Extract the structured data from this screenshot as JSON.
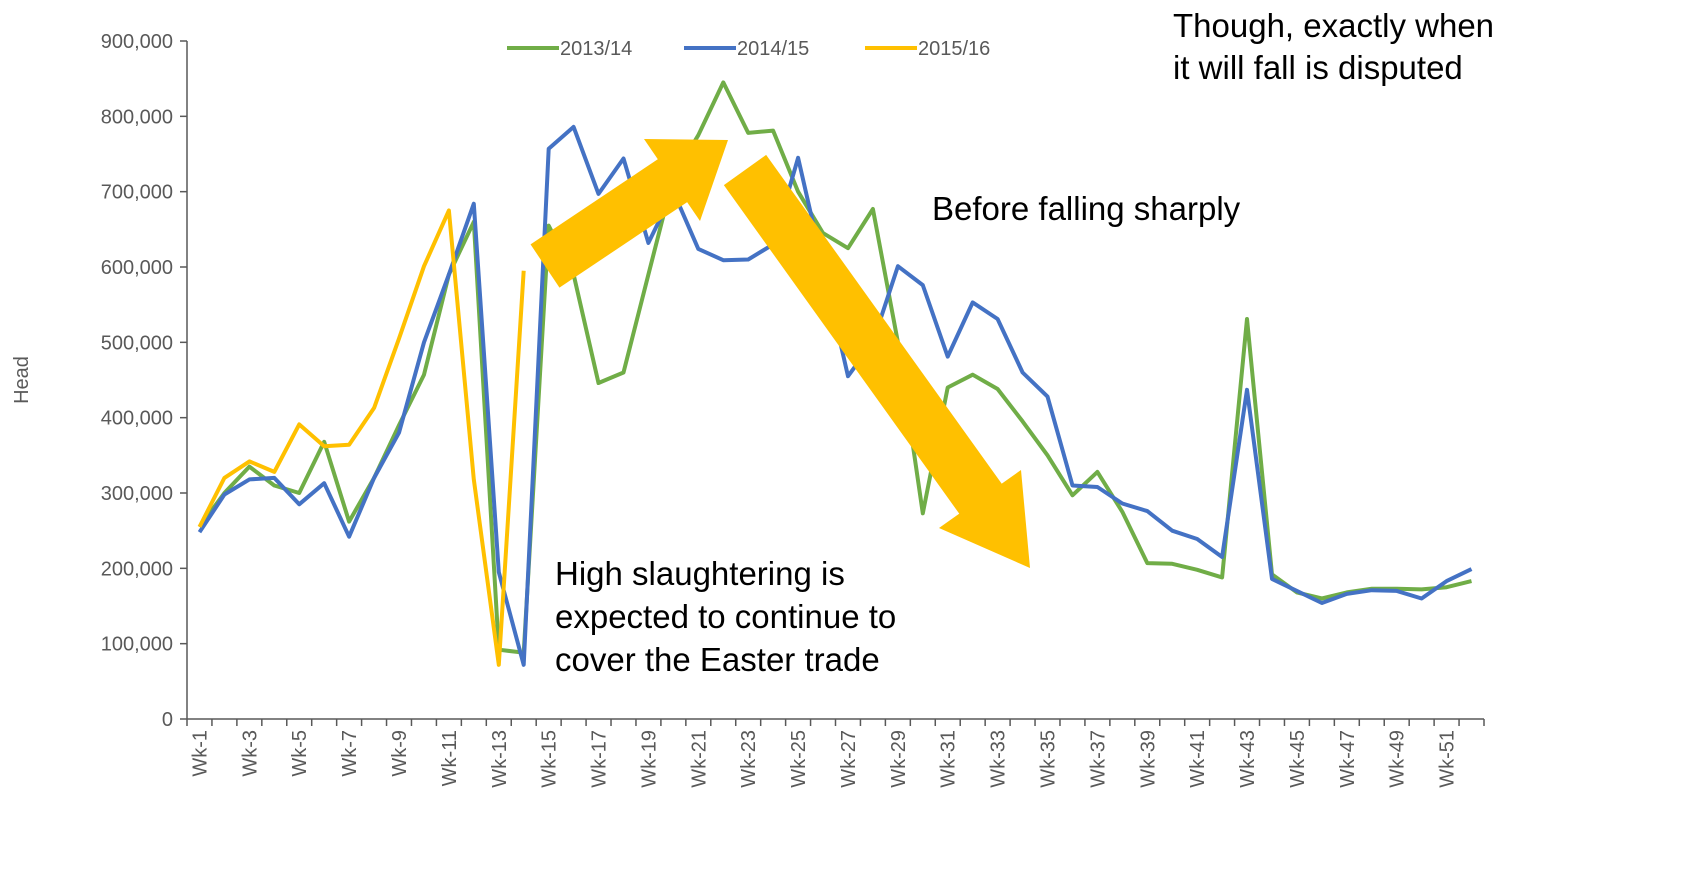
{
  "chart_data": {
    "type": "line",
    "y_label": "Head",
    "categories": [
      "Wk-1",
      null,
      "Wk-3",
      null,
      "Wk-5",
      null,
      "Wk-7",
      null,
      "Wk-9",
      null,
      "Wk-11",
      null,
      "Wk-13",
      null,
      "Wk-15",
      null,
      "Wk-17",
      null,
      "Wk-19",
      null,
      "Wk-21",
      null,
      "Wk-23",
      null,
      "Wk-25",
      null,
      "Wk-27",
      null,
      "Wk-29",
      null,
      "Wk-31",
      null,
      "Wk-33",
      null,
      "Wk-35",
      null,
      "Wk-37",
      null,
      "Wk-39",
      null,
      "Wk-41",
      null,
      "Wk-43",
      null,
      "Wk-45",
      null,
      "Wk-47",
      null,
      "Wk-49",
      null,
      "Wk-51",
      null
    ],
    "series": [
      {
        "name": "2013/14",
        "color": "#70ad47",
        "values": [
          255000,
          300000,
          335000,
          310000,
          300000,
          368000,
          262000,
          320000,
          390000,
          457000,
          590000,
          660000,
          92000,
          88000,
          655000,
          590000,
          446000,
          460000,
          590000,
          720000,
          775000,
          845000,
          778000,
          781000,
          700000,
          645000,
          625000,
          677000,
          500000,
          273000,
          440000,
          457000,
          438000,
          395000,
          350000,
          297000,
          328000,
          275000,
          207000,
          206000,
          198000,
          188000,
          531000,
          192000,
          168000,
          160000,
          168000,
          173000,
          173000,
          172000,
          175000,
          183000
        ]
      },
      {
        "name": "2014/15",
        "color": "#4472c4",
        "values": [
          248000,
          298000,
          318000,
          320000,
          285000,
          313000,
          242000,
          320000,
          380000,
          500000,
          590000,
          684000,
          195000,
          72000,
          757000,
          786000,
          697000,
          744000,
          632000,
          700000,
          624000,
          609000,
          610000,
          630000,
          745000,
          600000,
          455000,
          500000,
          601000,
          576000,
          481000,
          553000,
          531000,
          460000,
          428000,
          310000,
          308000,
          286000,
          276000,
          250000,
          239000,
          215000,
          437000,
          186000,
          170000,
          154000,
          166000,
          171000,
          170000,
          160000,
          183000,
          199000
        ]
      },
      {
        "name": "2015/16",
        "color": "#ffc000",
        "values": [
          255000,
          320000,
          342000,
          328000,
          391000,
          362000,
          364000,
          413000,
          505000,
          601000,
          675000,
          318000,
          72000,
          595000,
          null,
          null,
          null,
          null,
          null,
          null,
          null,
          null,
          null,
          null,
          null,
          null,
          null,
          null,
          null,
          null,
          null,
          null,
          null,
          null,
          null,
          null,
          null,
          null,
          null,
          null,
          null,
          null,
          null,
          null,
          null,
          null,
          null,
          null,
          null,
          null,
          null,
          null
        ]
      }
    ],
    "ylim": [
      0,
      900000
    ],
    "yticks": [
      0,
      {
        "value": 100000,
        "label": "100,000"
      },
      {
        "value": 200000,
        "label": "200,000"
      },
      {
        "value": 300000,
        "label": "300,000"
      },
      {
        "value": 400000,
        "label": "400,000"
      },
      {
        "value": 500000,
        "label": "500,000"
      },
      {
        "value": 600000,
        "label": "600,000"
      },
      {
        "value": 700000,
        "label": "700,000"
      },
      {
        "value": 800000,
        "label": "800,000"
      },
      {
        "value": 900000,
        "label": "900,000"
      }
    ],
    "legend": "top",
    "annotations": [
      "Though, exactly when",
      "it will fall is disputed",
      "Before falling sharply",
      "High slaughtering is",
      "expected to continue to",
      "cover the Easter trade"
    ]
  }
}
